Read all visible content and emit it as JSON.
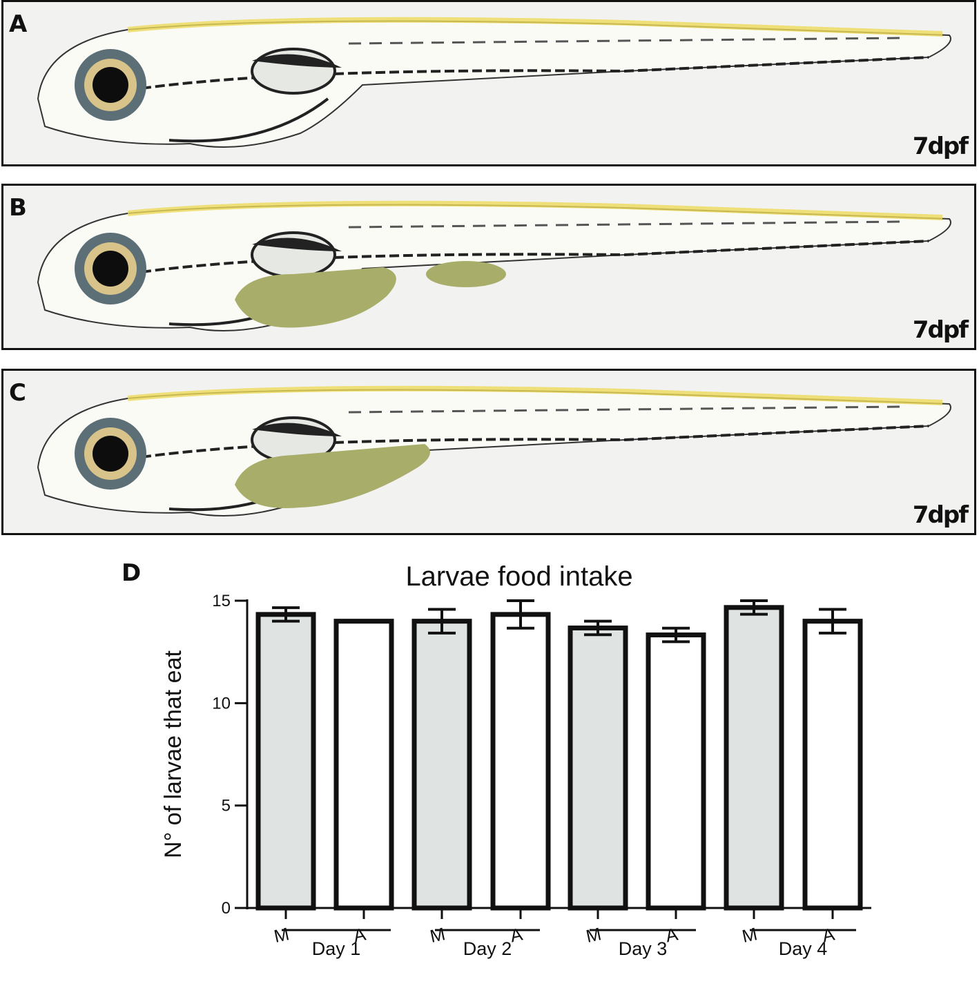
{
  "panels": [
    {
      "letter": "A",
      "stage": "7dpf",
      "gut_food": "none"
    },
    {
      "letter": "B",
      "stage": "7dpf",
      "gut_food": "full"
    },
    {
      "letter": "C",
      "stage": "7dpf",
      "gut_food": "partial"
    }
  ],
  "chart_letter": "D",
  "colors": {
    "morning": "#dfe3e2",
    "afternoon": "#ffffff",
    "stroke": "#111111",
    "fish_yellow": "#ecd95a",
    "gut_green": "#a8ad6a"
  },
  "chart_data": {
    "type": "bar",
    "title": "Larvae food intake",
    "xlabel": "",
    "ylabel": "N° of larvae that eat",
    "ylim": [
      0,
      15
    ],
    "yticks": [
      "0",
      "5",
      "10",
      "15"
    ],
    "categories": [
      "M",
      "A",
      "M",
      "A",
      "M",
      "A",
      "M",
      "A"
    ],
    "groups": [
      "Day 1",
      "Day 2",
      "Day 3",
      "Day 4"
    ],
    "values": [
      14.33,
      14.0,
      14.0,
      14.33,
      13.67,
      13.33,
      14.67,
      14.0
    ],
    "errors": [
      0.33,
      0.0,
      0.58,
      0.67,
      0.33,
      0.33,
      0.33,
      0.58
    ],
    "fill": [
      "morning",
      "afternoon",
      "morning",
      "afternoon",
      "morning",
      "afternoon",
      "morning",
      "afternoon"
    ],
    "grid": false,
    "legend": "none"
  }
}
